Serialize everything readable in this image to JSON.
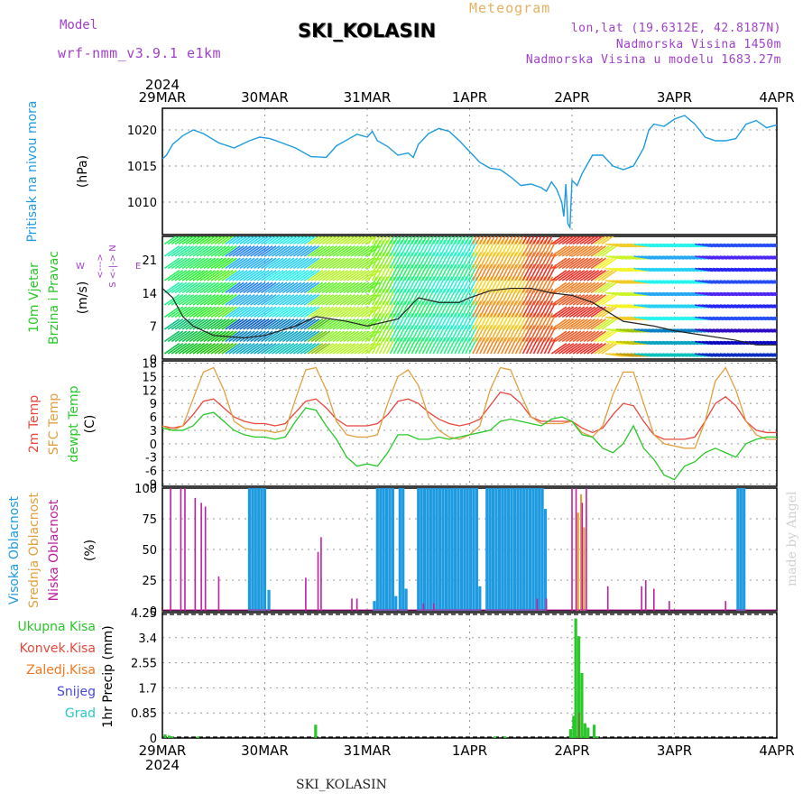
{
  "header": {
    "model_label": "Model",
    "model_name": "wrf-nmm_v3.9.1 e1km",
    "title": "Meteogram",
    "site": "SKI_KOLASIN",
    "lonlat": "lon,lat (19.6312E, 42.8187N)",
    "elevation": "Nadmorska Visina 1450m",
    "model_elevation": "Nadmorska Visina u modelu 1683.27m"
  },
  "footer": {
    "site": "SKI_KOLASIN",
    "credit": "made by Angel"
  },
  "time_axis": {
    "year": "2024",
    "labels": [
      "29MAR",
      "30MAR",
      "31MAR",
      "1APR",
      "2APR",
      "3APR",
      "4APR"
    ]
  },
  "colors": {
    "pressure": "#1e9be0",
    "temp2m": "#e8483c",
    "sfc": "#e0a040",
    "dewpt": "#28c828",
    "high_cloud": "#1e9be0",
    "mid_cloud": "#e0a040",
    "low_cloud": "#c020a0",
    "total_precip": "#28c828",
    "conv_precip": "#e8483c",
    "frozen_precip": "#f07820",
    "snow": "#4848e0",
    "grad": "#28c8c8"
  },
  "chart_data": [
    {
      "type": "line",
      "panel": "pressure",
      "ylabel_lines": [
        "Pritisak na nivou mora",
        "(hPa)"
      ],
      "ylim": [
        1005.5,
        1023
      ],
      "yticks": [
        1010,
        1015,
        1020
      ],
      "x_days": [
        0,
        0.04,
        0.1,
        0.2,
        0.3,
        0.4,
        0.55,
        0.7,
        0.85,
        0.95,
        1.05,
        1.15,
        1.3,
        1.45,
        1.6,
        1.7,
        1.8,
        1.9,
        2.0,
        2.05,
        2.1,
        2.2,
        2.3,
        2.4,
        2.45,
        2.5,
        2.6,
        2.7,
        2.8,
        2.9,
        3.0,
        3.1,
        3.2,
        3.3,
        3.4,
        3.5,
        3.6,
        3.7,
        3.75,
        3.8,
        3.85,
        3.9,
        3.92,
        3.94,
        3.96,
        3.98,
        4.0,
        4.05,
        4.1,
        4.2,
        4.3,
        4.4,
        4.5,
        4.6,
        4.7,
        4.75,
        4.8,
        4.9,
        5.0,
        5.1,
        5.2,
        5.3,
        5.4,
        5.5,
        5.6,
        5.7,
        5.8,
        5.9,
        6.0
      ],
      "series": [
        {
          "values": [
            1016,
            1016.5,
            1018,
            1019.2,
            1020,
            1019.5,
            1018.2,
            1017.5,
            1018.5,
            1019,
            1018.8,
            1018.3,
            1017.5,
            1016.3,
            1016.2,
            1017.8,
            1018.6,
            1019.4,
            1019,
            1019.8,
            1018.5,
            1017.7,
            1016.5,
            1016.8,
            1016.2,
            1018,
            1019.5,
            1020.2,
            1019.8,
            1018.5,
            1017,
            1015.5,
            1014.7,
            1014.5,
            1013.5,
            1012.3,
            1012.5,
            1012,
            1011.5,
            1012.8,
            1011.8,
            1010,
            1008,
            1012.5,
            1007,
            1006.5,
            1013,
            1012.3,
            1014,
            1016.5,
            1016.5,
            1015,
            1014.5,
            1015,
            1017.5,
            1020,
            1020.8,
            1020.5,
            1021.5,
            1022,
            1020.8,
            1019,
            1018.5,
            1018.5,
            1018.8,
            1020.8,
            1021.3,
            1020.3,
            1020.7
          ]
        }
      ]
    },
    {
      "type": "line",
      "panel": "wind",
      "ylabel_lines": [
        "10m Vjetar",
        "Brzina i Pravac",
        "(m/s)"
      ],
      "direction_legend": [
        "N",
        "S",
        "W",
        "E",
        "<-|->",
        "<--->"
      ],
      "ylim": [
        0,
        26
      ],
      "yticks": [
        0,
        7,
        14,
        21
      ],
      "x_days": [
        0,
        0.1,
        0.2,
        0.3,
        0.5,
        0.8,
        1.0,
        1.3,
        1.5,
        1.8,
        2.0,
        2.3,
        2.5,
        2.7,
        2.9,
        3.0,
        3.2,
        3.4,
        3.6,
        3.8,
        4.0,
        4.2,
        4.5,
        4.8,
        5.0,
        5.3,
        5.6,
        5.8,
        6.0
      ],
      "series": [
        {
          "name": "speed",
          "values": [
            15,
            13,
            9,
            7,
            5,
            4.5,
            5,
            7,
            9,
            8,
            7,
            8.5,
            13,
            12,
            12,
            13,
            14.5,
            15,
            15,
            14,
            13.5,
            12,
            8,
            7,
            6,
            5,
            4,
            3,
            3
          ]
        }
      ]
    },
    {
      "type": "line",
      "panel": "temperature",
      "ylabel_lines": [
        "2m Temp",
        "SFC Temp",
        "dewpt Temp",
        "(C)"
      ],
      "ylim": [
        -9.5,
        18.5
      ],
      "yticks": [
        -9,
        -6,
        -3,
        0,
        3,
        6,
        9,
        12,
        15,
        18
      ],
      "x_days": [
        0,
        0.1,
        0.2,
        0.3,
        0.4,
        0.5,
        0.6,
        0.7,
        0.8,
        0.9,
        1.0,
        1.1,
        1.2,
        1.3,
        1.4,
        1.5,
        1.6,
        1.7,
        1.8,
        1.9,
        2.0,
        2.1,
        2.2,
        2.3,
        2.4,
        2.5,
        2.6,
        2.7,
        2.8,
        2.9,
        3.0,
        3.1,
        3.2,
        3.3,
        3.4,
        3.5,
        3.6,
        3.7,
        3.8,
        3.9,
        4.0,
        4.1,
        4.2,
        4.3,
        4.4,
        4.5,
        4.6,
        4.7,
        4.8,
        4.9,
        5.0,
        5.1,
        5.2,
        5.3,
        5.4,
        5.5,
        5.6,
        5.7,
        5.8,
        5.9,
        6.0
      ],
      "series": [
        {
          "name": "2m Temp",
          "values": [
            4,
            3.5,
            4,
            6.5,
            9.5,
            10,
            8,
            6,
            5,
            4.5,
            4.5,
            4,
            4.5,
            7,
            9.5,
            10,
            8,
            5.5,
            4,
            4,
            4,
            4.5,
            6.5,
            9.5,
            10,
            9,
            7,
            5.5,
            4.5,
            4,
            4.5,
            5.5,
            8.5,
            11.5,
            11,
            9,
            6,
            5,
            5,
            5,
            5,
            3.5,
            2.5,
            3.5,
            6.5,
            9,
            8.5,
            5,
            2,
            1,
            1,
            1,
            1.5,
            5,
            9,
            10.5,
            8.5,
            5,
            3,
            2.5,
            2.5
          ]
        },
        {
          "name": "SFC Temp",
          "values": [
            4,
            3,
            4,
            10,
            16,
            17,
            12,
            5,
            3.5,
            3,
            3,
            2.5,
            3,
            10,
            16.5,
            17,
            12,
            5,
            2,
            1.5,
            1.5,
            2,
            9,
            15,
            16.5,
            13,
            6,
            3,
            1.5,
            1,
            2,
            4,
            12,
            17,
            16.5,
            11,
            6,
            4.5,
            4.5,
            4.5,
            5,
            2.5,
            1.5,
            4,
            11,
            16,
            16,
            9,
            2,
            0,
            -0.5,
            -1,
            -1,
            5,
            14,
            17,
            12,
            5,
            2,
            1,
            1
          ]
        },
        {
          "name": "dewpt Temp",
          "values": [
            3.5,
            3,
            3,
            4,
            6.5,
            7,
            5,
            3,
            2,
            1.5,
            1.5,
            1,
            1.5,
            5,
            8,
            7.5,
            4,
            1,
            -3,
            -5,
            -4.5,
            -5,
            -2,
            2,
            2,
            1,
            1,
            1.5,
            1,
            1.5,
            2,
            2.5,
            3,
            5,
            5.5,
            5,
            4.5,
            4,
            5.5,
            6,
            5,
            2,
            1.5,
            -1,
            -2,
            0,
            4,
            -1,
            -3.5,
            -7,
            -8,
            -5,
            -4,
            -2,
            -1,
            -2,
            -3,
            0,
            1,
            1.5,
            1.5
          ]
        }
      ]
    },
    {
      "type": "bar",
      "panel": "clouds",
      "ylabel_lines": [
        "Visoka Oblacnost",
        "Srednja Oblacnost",
        "Niska Oblacnost",
        "(%)"
      ],
      "ylim": [
        0,
        100
      ],
      "yticks": [
        0,
        25,
        50,
        75,
        100
      ],
      "series": [
        {
          "name": "Visoka Oblacnost",
          "x_days": [
            0.85,
            0.88,
            0.91,
            0.94,
            0.97,
            1.0,
            1.04,
            2.07,
            2.1,
            2.13,
            2.16,
            2.19,
            2.22,
            2.25,
            2.28,
            2.32,
            2.35,
            2.38,
            2.5,
            2.53,
            2.56,
            2.59,
            2.62,
            2.65,
            2.68,
            2.71,
            2.74,
            2.77,
            2.8,
            2.83,
            2.86,
            2.89,
            2.92,
            2.95,
            2.98,
            3.01,
            3.04,
            3.07,
            3.1,
            3.17,
            3.2,
            3.23,
            3.26,
            3.29,
            3.32,
            3.35,
            3.38,
            3.41,
            3.44,
            3.47,
            3.5,
            3.53,
            3.56,
            3.59,
            3.62,
            3.65,
            3.68,
            3.71,
            3.74,
            5.62,
            5.65,
            5.68
          ],
          "values": [
            100,
            100,
            100,
            100,
            100,
            100,
            17,
            8,
            100,
            100,
            100,
            100,
            100,
            100,
            12,
            100,
            100,
            18,
            100,
            100,
            100,
            100,
            100,
            100,
            100,
            100,
            100,
            100,
            100,
            100,
            100,
            100,
            100,
            100,
            100,
            100,
            100,
            100,
            20,
            100,
            100,
            100,
            100,
            100,
            100,
            100,
            100,
            100,
            100,
            100,
            100,
            100,
            100,
            100,
            100,
            100,
            100,
            100,
            83,
            100,
            100,
            100
          ]
        },
        {
          "name": "Srednja Oblacnost",
          "x_days": [
            4.05,
            4.08,
            4.11
          ],
          "values": [
            80,
            95,
            68
          ]
        },
        {
          "name": "Niska Oblacnost",
          "x_days": [
            0.08,
            0.18,
            0.22,
            0.32,
            0.38,
            0.42,
            0.55,
            1.4,
            1.52,
            1.55,
            1.85,
            1.9,
            2.55,
            2.65,
            3.66,
            3.75,
            4.0,
            4.04,
            4.1,
            4.14,
            4.35,
            4.68,
            4.72,
            4.8,
            4.95,
            5.5
          ],
          "values": [
            100,
            100,
            100,
            92,
            88,
            85,
            28,
            27,
            48,
            60,
            10,
            10,
            6,
            6,
            10,
            10,
            100,
            100,
            88,
            100,
            20,
            20,
            25,
            18,
            8,
            8
          ]
        }
      ]
    },
    {
      "type": "bar",
      "panel": "precip",
      "ylabel_lines": [
        "1hr Precip (mm)"
      ],
      "legend": [
        "Ukupna Kisa",
        "Konvek.Kisa",
        "Zaledj.Kisa",
        "Snijeg",
        "Grad"
      ],
      "ylim": [
        0,
        4.25
      ],
      "yticks": [
        0,
        0.85,
        1.7,
        2.55,
        3.4,
        4.25
      ],
      "series": [
        {
          "name": "Ukupna Kisa",
          "x_days": [
            0.03,
            0.07,
            0.1,
            0.35,
            1.5,
            3.25,
            3.35,
            3.99,
            4.02,
            4.04,
            4.07,
            4.1,
            4.13,
            4.16,
            4.22,
            4.25
          ],
          "values": [
            0.12,
            0.08,
            0.05,
            0.05,
            0.45,
            0.05,
            0.05,
            0.3,
            0.75,
            4.05,
            3.45,
            2.2,
            0.5,
            0.35,
            0.45,
            0.05
          ]
        },
        {
          "name": "Zaledj.Kisa",
          "x_days": [
            4.07
          ],
          "values": [
            0.85
          ]
        }
      ]
    }
  ]
}
